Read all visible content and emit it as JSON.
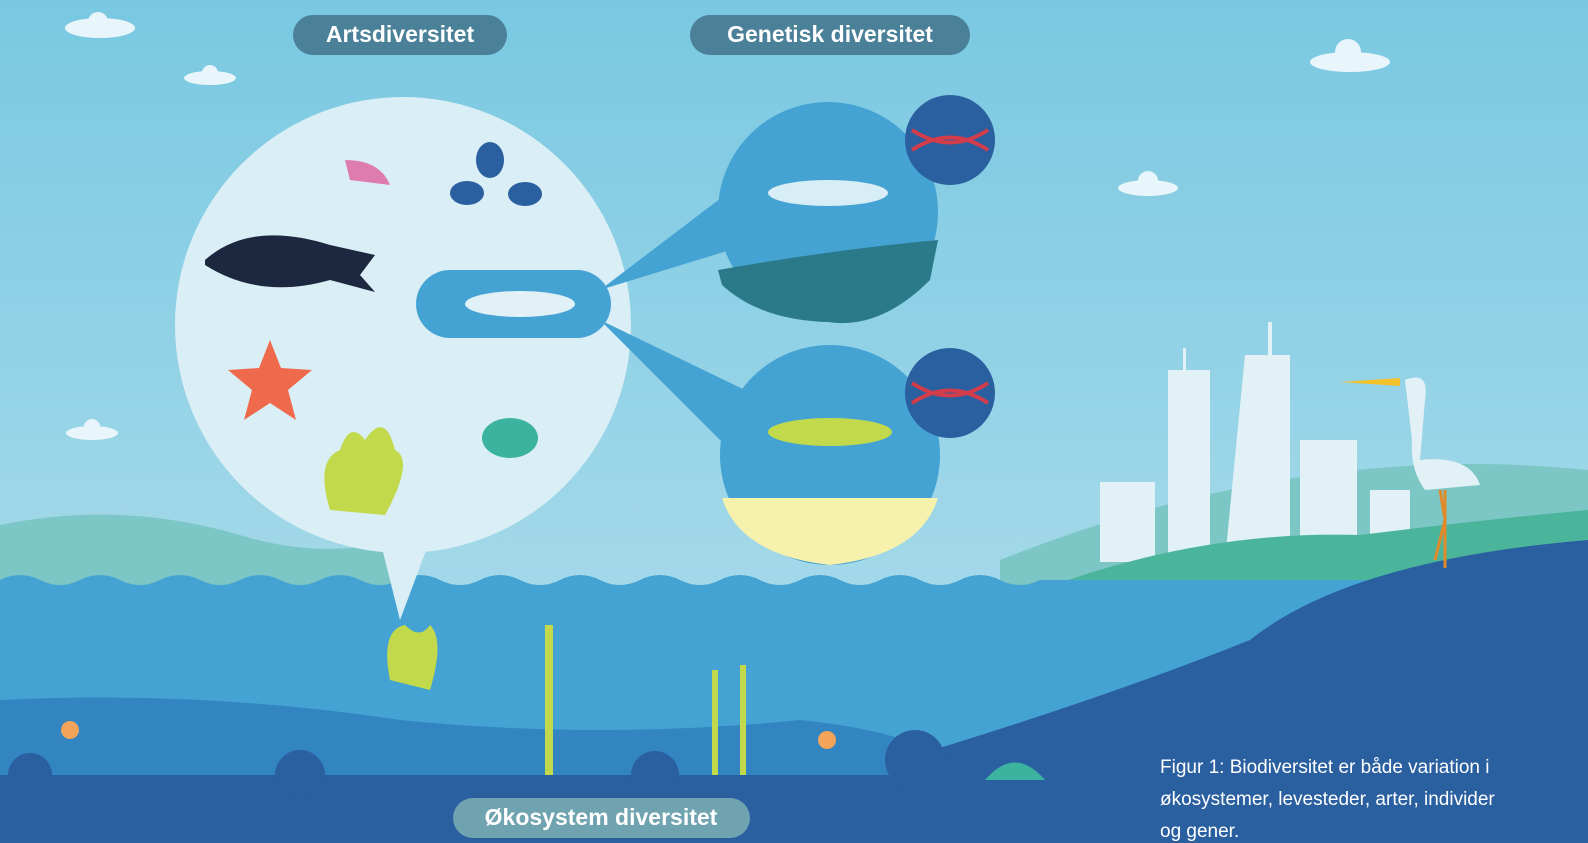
{
  "labels": {
    "species": "Artsdiversitet",
    "genetic": "Genetisk diversitet",
    "ecosystem": "Økosystem diversitet"
  },
  "caption": "Figur 1: Biodiversitet er både variation i økosystemer, levesteder, arter, individer og gener."
}
